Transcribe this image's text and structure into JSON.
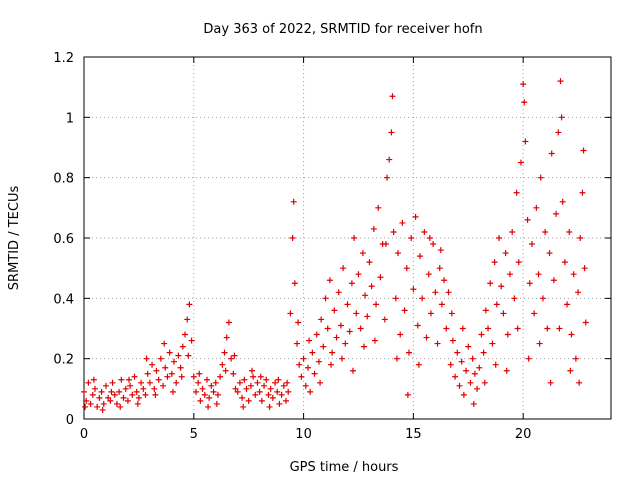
{
  "chart_data": {
    "type": "scatter",
    "title": "Day 363 of 2022, SRMTID for receiver hofn",
    "xlabel": "GPS time / hours",
    "ylabel": "SRMTID / TECUs",
    "xlim": [
      0,
      24
    ],
    "ylim": [
      0,
      1.2
    ],
    "xticks": [
      "0",
      "5",
      "10",
      "15",
      "20"
    ],
    "xtick_values": [
      0,
      5,
      10,
      15,
      20
    ],
    "yticks": [
      "0",
      "0.2",
      "0.4",
      "0.6",
      "0.8",
      "1",
      "1.2"
    ],
    "ytick_values": [
      0,
      0.2,
      0.4,
      0.6,
      0.8,
      1.0,
      1.2
    ],
    "grid": true,
    "marker": "+",
    "series": [
      {
        "name": "SRMTID",
        "color": "#e00000",
        "points": [
          [
            0.0,
            0.09
          ],
          [
            0.1,
            0.06
          ],
          [
            0.2,
            0.12
          ],
          [
            0.3,
            0.05
          ],
          [
            0.4,
            0.08
          ],
          [
            0.5,
            0.1
          ],
          [
            0.6,
            0.04
          ],
          [
            0.7,
            0.07
          ],
          [
            0.8,
            0.09
          ],
          [
            0.9,
            0.05
          ],
          [
            1.0,
            0.11
          ],
          [
            1.1,
            0.07
          ],
          [
            1.2,
            0.06
          ],
          [
            1.3,
            0.12
          ],
          [
            1.4,
            0.08
          ],
          [
            1.5,
            0.05
          ],
          [
            1.6,
            0.09
          ],
          [
            1.7,
            0.13
          ],
          [
            1.8,
            0.07
          ],
          [
            1.9,
            0.1
          ],
          [
            2.0,
            0.06
          ],
          [
            2.1,
            0.11
          ],
          [
            2.2,
            0.08
          ],
          [
            2.3,
            0.14
          ],
          [
            2.4,
            0.09
          ],
          [
            2.5,
            0.07
          ],
          [
            2.6,
            0.12
          ],
          [
            2.7,
            0.1
          ],
          [
            2.8,
            0.08
          ],
          [
            2.9,
            0.15
          ],
          [
            3.0,
            0.12
          ],
          [
            3.1,
            0.18
          ],
          [
            3.2,
            0.1
          ],
          [
            3.3,
            0.16
          ],
          [
            3.4,
            0.13
          ],
          [
            3.5,
            0.2
          ],
          [
            3.6,
            0.11
          ],
          [
            3.7,
            0.17
          ],
          [
            3.8,
            0.14
          ],
          [
            3.9,
            0.22
          ],
          [
            4.0,
            0.15
          ],
          [
            4.1,
            0.19
          ],
          [
            4.2,
            0.12
          ],
          [
            4.3,
            0.21
          ],
          [
            4.4,
            0.17
          ],
          [
            4.5,
            0.24
          ],
          [
            4.6,
            0.28
          ],
          [
            4.7,
            0.33
          ],
          [
            4.8,
            0.38
          ],
          [
            4.9,
            0.26
          ],
          [
            5.0,
            0.14
          ],
          [
            5.1,
            0.09
          ],
          [
            5.2,
            0.12
          ],
          [
            5.3,
            0.06
          ],
          [
            5.4,
            0.1
          ],
          [
            5.5,
            0.08
          ],
          [
            5.6,
            0.13
          ],
          [
            5.7,
            0.07
          ],
          [
            5.8,
            0.11
          ],
          [
            5.9,
            0.09
          ],
          [
            6.0,
            0.12
          ],
          [
            6.1,
            0.08
          ],
          [
            6.2,
            0.14
          ],
          [
            6.3,
            0.18
          ],
          [
            6.4,
            0.22
          ],
          [
            6.5,
            0.27
          ],
          [
            6.6,
            0.32
          ],
          [
            6.7,
            0.2
          ],
          [
            6.8,
            0.15
          ],
          [
            6.9,
            0.1
          ],
          [
            7.0,
            0.09
          ],
          [
            7.1,
            0.12
          ],
          [
            7.2,
            0.07
          ],
          [
            7.3,
            0.13
          ],
          [
            7.4,
            0.1
          ],
          [
            7.5,
            0.06
          ],
          [
            7.6,
            0.11
          ],
          [
            7.7,
            0.14
          ],
          [
            7.8,
            0.08
          ],
          [
            7.9,
            0.12
          ],
          [
            8.0,
            0.09
          ],
          [
            8.1,
            0.06
          ],
          [
            8.2,
            0.11
          ],
          [
            8.3,
            0.13
          ],
          [
            8.4,
            0.08
          ],
          [
            8.5,
            0.1
          ],
          [
            8.6,
            0.07
          ],
          [
            8.7,
            0.12
          ],
          [
            8.8,
            0.09
          ],
          [
            8.9,
            0.05
          ],
          [
            9.0,
            0.08
          ],
          [
            9.1,
            0.11
          ],
          [
            9.2,
            0.06
          ],
          [
            9.3,
            0.09
          ],
          [
            9.4,
            0.35
          ],
          [
            9.5,
            0.6
          ],
          [
            9.55,
            0.72
          ],
          [
            9.6,
            0.45
          ],
          [
            9.7,
            0.25
          ],
          [
            9.8,
            0.18
          ],
          [
            9.9,
            0.14
          ],
          [
            10.0,
            0.2
          ],
          [
            10.1,
            0.11
          ],
          [
            10.2,
            0.17
          ],
          [
            10.3,
            0.09
          ],
          [
            10.4,
            0.22
          ],
          [
            10.5,
            0.15
          ],
          [
            10.6,
            0.28
          ],
          [
            10.7,
            0.19
          ],
          [
            10.8,
            0.33
          ],
          [
            10.9,
            0.24
          ],
          [
            11.0,
            0.4
          ],
          [
            11.1,
            0.3
          ],
          [
            11.2,
            0.46
          ],
          [
            11.3,
            0.22
          ],
          [
            11.4,
            0.36
          ],
          [
            11.5,
            0.27
          ],
          [
            11.6,
            0.42
          ],
          [
            11.7,
            0.31
          ],
          [
            11.8,
            0.5
          ],
          [
            11.9,
            0.25
          ],
          [
            12.0,
            0.38
          ],
          [
            12.1,
            0.29
          ],
          [
            12.2,
            0.45
          ],
          [
            12.3,
            0.6
          ],
          [
            12.4,
            0.35
          ],
          [
            12.5,
            0.48
          ],
          [
            12.6,
            0.3
          ],
          [
            12.7,
            0.55
          ],
          [
            12.8,
            0.41
          ],
          [
            12.9,
            0.34
          ],
          [
            13.0,
            0.52
          ],
          [
            13.1,
            0.44
          ],
          [
            13.2,
            0.63
          ],
          [
            13.3,
            0.38
          ],
          [
            13.4,
            0.7
          ],
          [
            13.5,
            0.47
          ],
          [
            13.6,
            0.58
          ],
          [
            13.7,
            0.33
          ],
          [
            13.8,
            0.8
          ],
          [
            13.9,
            0.86
          ],
          [
            14.0,
            0.95
          ],
          [
            14.05,
            1.07
          ],
          [
            14.1,
            0.62
          ],
          [
            14.2,
            0.4
          ],
          [
            14.3,
            0.55
          ],
          [
            14.4,
            0.28
          ],
          [
            14.5,
            0.65
          ],
          [
            14.6,
            0.36
          ],
          [
            14.7,
            0.5
          ],
          [
            14.8,
            0.22
          ],
          [
            14.9,
            0.6
          ],
          [
            15.0,
            0.43
          ],
          [
            15.1,
            0.67
          ],
          [
            15.2,
            0.31
          ],
          [
            15.3,
            0.54
          ],
          [
            15.4,
            0.4
          ],
          [
            15.5,
            0.62
          ],
          [
            15.6,
            0.27
          ],
          [
            15.7,
            0.48
          ],
          [
            15.8,
            0.35
          ],
          [
            15.9,
            0.58
          ],
          [
            16.0,
            0.42
          ],
          [
            16.1,
            0.25
          ],
          [
            16.2,
            0.5
          ],
          [
            16.3,
            0.38
          ],
          [
            16.4,
            0.46
          ],
          [
            16.5,
            0.3
          ],
          [
            16.6,
            0.42
          ],
          [
            16.7,
            0.18
          ],
          [
            16.8,
            0.26
          ],
          [
            16.9,
            0.14
          ],
          [
            17.0,
            0.22
          ],
          [
            17.1,
            0.11
          ],
          [
            17.2,
            0.19
          ],
          [
            17.3,
            0.08
          ],
          [
            17.4,
            0.16
          ],
          [
            17.5,
            0.24
          ],
          [
            17.6,
            0.12
          ],
          [
            17.7,
            0.2
          ],
          [
            17.8,
            0.15
          ],
          [
            17.9,
            0.1
          ],
          [
            18.0,
            0.17
          ],
          [
            18.1,
            0.28
          ],
          [
            18.2,
            0.22
          ],
          [
            18.3,
            0.36
          ],
          [
            18.4,
            0.3
          ],
          [
            18.5,
            0.45
          ],
          [
            18.6,
            0.25
          ],
          [
            18.7,
            0.52
          ],
          [
            18.8,
            0.38
          ],
          [
            18.9,
            0.6
          ],
          [
            19.0,
            0.44
          ],
          [
            19.1,
            0.35
          ],
          [
            19.2,
            0.55
          ],
          [
            19.3,
            0.28
          ],
          [
            19.4,
            0.48
          ],
          [
            19.5,
            0.62
          ],
          [
            19.6,
            0.4
          ],
          [
            19.7,
            0.75
          ],
          [
            19.8,
            0.52
          ],
          [
            19.9,
            0.85
          ],
          [
            20.0,
            1.11
          ],
          [
            20.05,
            1.05
          ],
          [
            20.1,
            0.92
          ],
          [
            20.2,
            0.66
          ],
          [
            20.3,
            0.45
          ],
          [
            20.4,
            0.58
          ],
          [
            20.5,
            0.35
          ],
          [
            20.6,
            0.7
          ],
          [
            20.7,
            0.48
          ],
          [
            20.8,
            0.8
          ],
          [
            20.9,
            0.4
          ],
          [
            21.0,
            0.62
          ],
          [
            21.1,
            0.3
          ],
          [
            21.2,
            0.55
          ],
          [
            21.3,
            0.88
          ],
          [
            21.4,
            0.46
          ],
          [
            21.5,
            0.68
          ],
          [
            21.6,
            0.95
          ],
          [
            21.7,
            1.12
          ],
          [
            21.75,
            1.0
          ],
          [
            21.8,
            0.72
          ],
          [
            21.9,
            0.52
          ],
          [
            22.0,
            0.38
          ],
          [
            22.1,
            0.62
          ],
          [
            22.2,
            0.28
          ],
          [
            22.3,
            0.48
          ],
          [
            22.4,
            0.2
          ],
          [
            22.5,
            0.42
          ],
          [
            22.6,
            0.6
          ],
          [
            22.7,
            0.75
          ],
          [
            22.75,
            0.89
          ],
          [
            22.8,
            0.5
          ],
          [
            22.85,
            0.32
          ],
          [
            0.05,
            0.04
          ],
          [
            0.45,
            0.13
          ],
          [
            0.85,
            0.03
          ],
          [
            1.25,
            0.09
          ],
          [
            1.65,
            0.04
          ],
          [
            2.05,
            0.13
          ],
          [
            2.45,
            0.05
          ],
          [
            2.85,
            0.2
          ],
          [
            3.25,
            0.08
          ],
          [
            3.65,
            0.25
          ],
          [
            4.05,
            0.09
          ],
          [
            4.45,
            0.14
          ],
          [
            4.75,
            0.21
          ],
          [
            5.25,
            0.15
          ],
          [
            5.65,
            0.04
          ],
          [
            6.05,
            0.05
          ],
          [
            6.45,
            0.16
          ],
          [
            6.85,
            0.21
          ],
          [
            7.25,
            0.04
          ],
          [
            7.65,
            0.16
          ],
          [
            8.05,
            0.14
          ],
          [
            8.45,
            0.04
          ],
          [
            8.85,
            0.13
          ],
          [
            9.25,
            0.12
          ],
          [
            9.75,
            0.32
          ],
          [
            10.25,
            0.26
          ],
          [
            10.75,
            0.12
          ],
          [
            11.25,
            0.18
          ],
          [
            11.75,
            0.2
          ],
          [
            12.25,
            0.16
          ],
          [
            12.75,
            0.24
          ],
          [
            13.25,
            0.26
          ],
          [
            13.75,
            0.58
          ],
          [
            14.25,
            0.2
          ],
          [
            14.75,
            0.08
          ],
          [
            15.25,
            0.18
          ],
          [
            15.75,
            0.6
          ],
          [
            16.25,
            0.56
          ],
          [
            16.75,
            0.35
          ],
          [
            17.25,
            0.3
          ],
          [
            17.75,
            0.05
          ],
          [
            18.25,
            0.12
          ],
          [
            18.75,
            0.18
          ],
          [
            19.25,
            0.16
          ],
          [
            19.75,
            0.3
          ],
          [
            20.25,
            0.2
          ],
          [
            20.75,
            0.25
          ],
          [
            21.25,
            0.12
          ],
          [
            21.65,
            0.3
          ],
          [
            22.15,
            0.16
          ],
          [
            22.55,
            0.12
          ]
        ]
      }
    ]
  }
}
